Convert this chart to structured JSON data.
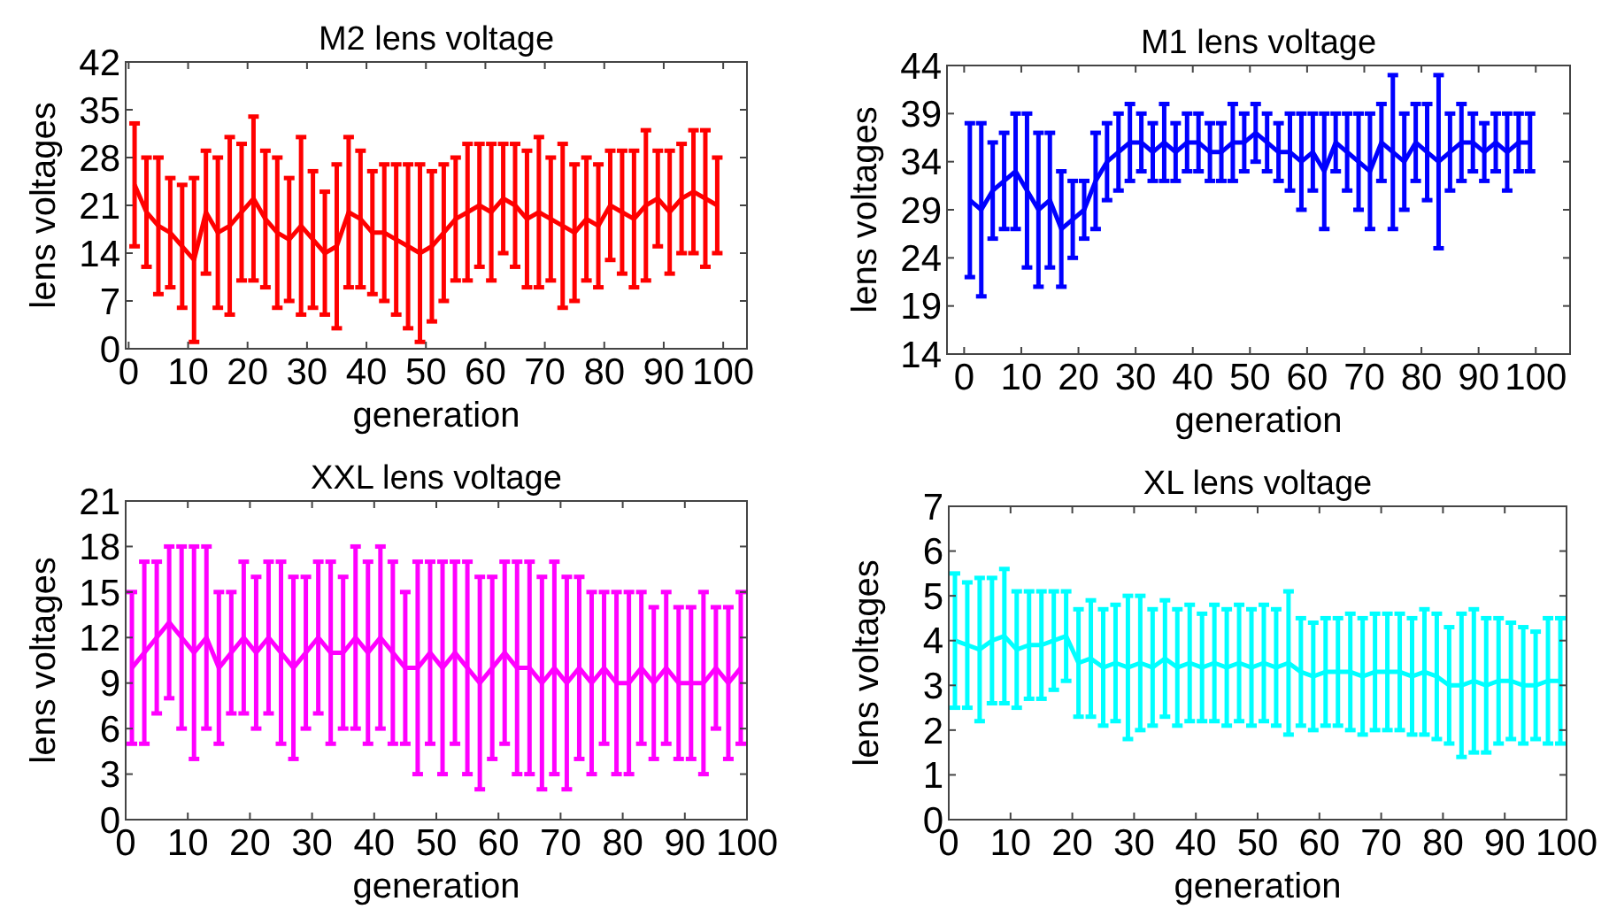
{
  "chart_data": [
    {
      "type": "line",
      "title": "M2 lens voltage",
      "xlabel": "generation",
      "ylabel": "lens voltages",
      "color": "#ff0000",
      "xlim": [
        -0.5,
        104
      ],
      "xticks": [
        0,
        10,
        20,
        30,
        40,
        50,
        60,
        70,
        80,
        90,
        100
      ],
      "ylim": [
        0,
        42
      ],
      "yticks": [
        0,
        7,
        14,
        21,
        28,
        35,
        42
      ],
      "x": [
        1,
        3,
        5,
        7,
        9,
        11,
        13,
        15,
        17,
        19,
        21,
        23,
        25,
        27,
        29,
        31,
        33,
        35,
        37,
        39,
        41,
        43,
        45,
        47,
        49,
        51,
        53,
        55,
        57,
        59,
        61,
        63,
        65,
        67,
        69,
        71,
        73,
        75,
        77,
        79,
        81,
        83,
        85,
        87,
        89,
        91,
        93,
        95,
        97,
        99
      ],
      "values": [
        24,
        20,
        18,
        17,
        15,
        13,
        20,
        17,
        18,
        20,
        22,
        19,
        17,
        16,
        18,
        16,
        14,
        15,
        20,
        19,
        17,
        17,
        16,
        15,
        14,
        15,
        17,
        19,
        20,
        21,
        20,
        22,
        21,
        19,
        20,
        19,
        18,
        17,
        19,
        18,
        21,
        20,
        19,
        21,
        22,
        20,
        22,
        23,
        22,
        21
      ],
      "errors": [
        9,
        8,
        10,
        8,
        9,
        12,
        9,
        11,
        13,
        10,
        12,
        10,
        11,
        9,
        13,
        10,
        9,
        12,
        11,
        10,
        9,
        10,
        11,
        12,
        13,
        11,
        10,
        9,
        10,
        9,
        10,
        8,
        9,
        10,
        11,
        9,
        12,
        10,
        9,
        9,
        8,
        9,
        10,
        11,
        7,
        9,
        8,
        9,
        10,
        7
      ]
    },
    {
      "type": "line",
      "title": "M1 lens voltage",
      "xlabel": "generation",
      "ylabel": "lens voltages",
      "color": "#0000ff",
      "xlim": [
        -3,
        106
      ],
      "xticks": [
        0,
        10,
        20,
        30,
        40,
        50,
        60,
        70,
        80,
        90,
        100
      ],
      "ylim": [
        14,
        44
      ],
      "yticks": [
        14,
        19,
        24,
        29,
        34,
        39,
        44
      ],
      "x": [
        1,
        3,
        5,
        7,
        9,
        11,
        13,
        15,
        17,
        19,
        21,
        23,
        25,
        27,
        29,
        31,
        33,
        35,
        37,
        39,
        41,
        43,
        45,
        47,
        49,
        51,
        53,
        55,
        57,
        59,
        61,
        63,
        65,
        67,
        69,
        71,
        73,
        75,
        77,
        79,
        81,
        83,
        85,
        87,
        89,
        91,
        93,
        95,
        97,
        99
      ],
      "values": [
        30,
        29,
        31,
        32,
        33,
        31,
        29,
        30,
        27,
        28,
        29,
        32,
        34,
        35,
        36,
        36,
        35,
        36,
        35,
        36,
        36,
        35,
        35,
        36,
        36,
        37,
        36,
        35,
        35,
        34,
        35,
        33,
        36,
        35,
        34,
        33,
        36,
        35,
        34,
        36,
        35,
        34,
        35,
        36,
        36,
        35,
        36,
        35,
        36,
        36
      ],
      "errors": [
        8,
        9,
        5,
        5,
        6,
        8,
        8,
        7,
        6,
        4,
        3,
        5,
        4,
        4,
        4,
        3,
        3,
        4,
        3,
        3,
        3,
        3,
        3,
        4,
        3,
        3,
        3,
        3,
        4,
        5,
        4,
        6,
        3,
        4,
        5,
        6,
        4,
        8,
        5,
        4,
        5,
        9,
        4,
        4,
        3,
        3,
        3,
        4,
        3,
        3
      ]
    },
    {
      "type": "line",
      "title": "XXL lens voltage",
      "xlabel": "generation",
      "ylabel": "lens voltages",
      "color": "#ff00ff",
      "xlim": [
        0,
        100
      ],
      "xticks": [
        0,
        10,
        20,
        30,
        40,
        50,
        60,
        70,
        80,
        90,
        100
      ],
      "ylim": [
        0,
        21
      ],
      "yticks": [
        0,
        3,
        6,
        9,
        12,
        15,
        18,
        21
      ],
      "x": [
        1,
        3,
        5,
        7,
        9,
        11,
        13,
        15,
        17,
        19,
        21,
        23,
        25,
        27,
        29,
        31,
        33,
        35,
        37,
        39,
        41,
        43,
        45,
        47,
        49,
        51,
        53,
        55,
        57,
        59,
        61,
        63,
        65,
        67,
        69,
        71,
        73,
        75,
        77,
        79,
        81,
        83,
        85,
        87,
        89,
        91,
        93,
        95,
        97,
        99
      ],
      "values": [
        10,
        11,
        12,
        13,
        12,
        11,
        12,
        10,
        11,
        12,
        11,
        12,
        11,
        10,
        11,
        12,
        11,
        11,
        12,
        11,
        12,
        11,
        10,
        10,
        11,
        10,
        11,
        10,
        9,
        10,
        11,
        10,
        10,
        9,
        10,
        9,
        10,
        9,
        10,
        9,
        9,
        10,
        9,
        10,
        9,
        9,
        9,
        10,
        9,
        10
      ],
      "errors": [
        5,
        6,
        5,
        5,
        6,
        7,
        6,
        5,
        4,
        5,
        5,
        5,
        6,
        6,
        5,
        5,
        6,
        5,
        6,
        6,
        6,
        6,
        5,
        7,
        6,
        7,
        6,
        7,
        7,
        6,
        6,
        7,
        7,
        7,
        7,
        7,
        6,
        6,
        5,
        6,
        6,
        5,
        5,
        5,
        5,
        5,
        6,
        4,
        5,
        5
      ]
    },
    {
      "type": "line",
      "title": "XL lens voltage",
      "xlabel": "generation",
      "ylabel": "lens voltages",
      "color": "#00ffff",
      "xlim": [
        0,
        100
      ],
      "xticks": [
        0,
        10,
        20,
        30,
        40,
        50,
        60,
        70,
        80,
        90,
        100
      ],
      "ylim": [
        0,
        7
      ],
      "yticks": [
        0,
        1,
        2,
        3,
        4,
        5,
        6,
        7
      ],
      "x": [
        1,
        3,
        5,
        7,
        9,
        11,
        13,
        15,
        17,
        19,
        21,
        23,
        25,
        27,
        29,
        31,
        33,
        35,
        37,
        39,
        41,
        43,
        45,
        47,
        49,
        51,
        53,
        55,
        57,
        59,
        61,
        63,
        65,
        67,
        69,
        71,
        73,
        75,
        77,
        79,
        81,
        83,
        85,
        87,
        89,
        91,
        93,
        95,
        97,
        99
      ],
      "values": [
        4,
        3.9,
        3.8,
        4,
        4.1,
        3.8,
        3.9,
        3.9,
        4,
        4.1,
        3.5,
        3.6,
        3.4,
        3.5,
        3.4,
        3.5,
        3.4,
        3.6,
        3.4,
        3.5,
        3.4,
        3.5,
        3.4,
        3.5,
        3.4,
        3.5,
        3.4,
        3.5,
        3.3,
        3.2,
        3.3,
        3.3,
        3.3,
        3.2,
        3.3,
        3.3,
        3.3,
        3.2,
        3.3,
        3.2,
        3.0,
        3.0,
        3.1,
        3.0,
        3.1,
        3.1,
        3.0,
        3.0,
        3.1,
        3.1
      ],
      "errors": [
        1.5,
        1.4,
        1.6,
        1.4,
        1.5,
        1.3,
        1.2,
        1.2,
        1.1,
        1.0,
        1.2,
        1.3,
        1.3,
        1.3,
        1.6,
        1.5,
        1.3,
        1.3,
        1.3,
        1.3,
        1.2,
        1.3,
        1.3,
        1.3,
        1.3,
        1.3,
        1.3,
        1.6,
        1.2,
        1.2,
        1.2,
        1.2,
        1.3,
        1.3,
        1.3,
        1.3,
        1.3,
        1.3,
        1.4,
        1.4,
        1.3,
        1.6,
        1.6,
        1.5,
        1.4,
        1.3,
        1.3,
        1.2,
        1.4,
        1.4
      ]
    }
  ]
}
